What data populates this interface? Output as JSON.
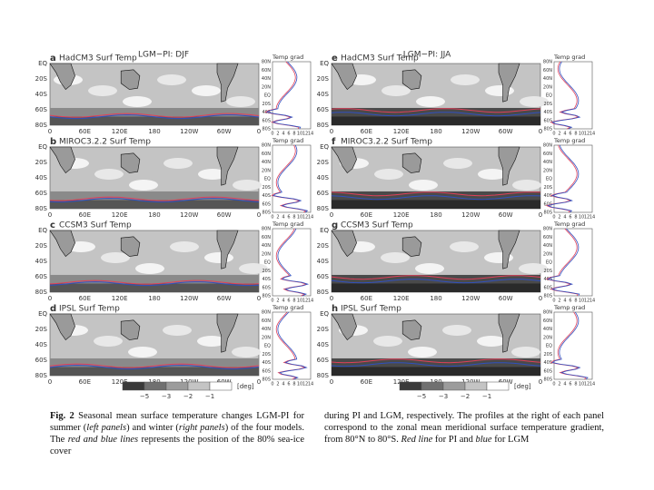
{
  "figure": {
    "headers": [
      "LGM−PI: DJF",
      "LGM−PI: JJA"
    ],
    "panels": [
      {
        "letter": "a",
        "title": "HadCM3 Surf Temp"
      },
      {
        "letter": "b",
        "title": "MIROC3.2.2 Surf Temp"
      },
      {
        "letter": "c",
        "title": "CCSM3 Surf Temp"
      },
      {
        "letter": "d",
        "title": "IPSL Surf Temp"
      },
      {
        "letter": "e",
        "title": "HadCM3 Surf Temp"
      },
      {
        "letter": "f",
        "title": "MIROC3.2.2 Surf Temp"
      },
      {
        "letter": "g",
        "title": "CCSM3 Surf Temp"
      },
      {
        "letter": "h",
        "title": "IPSL Surf Temp"
      }
    ],
    "map_lat_labels": [
      "EQ",
      "20S",
      "40S",
      "60S",
      "80S"
    ],
    "map_lon_labels": [
      "0",
      "60E",
      "120E",
      "180",
      "120W",
      "60W",
      "0"
    ],
    "profile_title": "Temp grad",
    "profile_lat_labels": [
      "80N",
      "60N",
      "40N",
      "20N",
      "EQ",
      "20S",
      "40S",
      "60S",
      "80S"
    ],
    "profile_x_labels": [
      "0",
      "2",
      "4",
      "6",
      "8",
      "10",
      "12",
      "14"
    ],
    "colorbar_labels": [
      "−5",
      "−3",
      "−2",
      "−1"
    ],
    "colorbar_unit": "[deg]"
  },
  "caption": {
    "segments": [
      {
        "text": "Fig. 2",
        "bold": true
      },
      {
        "text": " Seasonal mean surface temperature changes LGM-PI for summer ("
      },
      {
        "text": "left panels",
        "italic": true
      },
      {
        "text": ") and winter ("
      },
      {
        "text": "right panels",
        "italic": true
      },
      {
        "text": ") of the four models. The "
      },
      {
        "text": "red and blue lines",
        "italic": true
      },
      {
        "text": " represents the position of the 80% sea-ice cover"
      }
    ],
    "right_segments": [
      {
        "text": "during PI and LGM, respectively. The profiles at the right of each panel correspond to the zonal mean meridional surface temperature gradient, from 80°N to 80°S. "
      },
      {
        "text": "Red line",
        "italic": true
      },
      {
        "text": " for PI and "
      },
      {
        "text": "blue",
        "italic": true
      },
      {
        "text": " for LGM"
      }
    ]
  }
}
